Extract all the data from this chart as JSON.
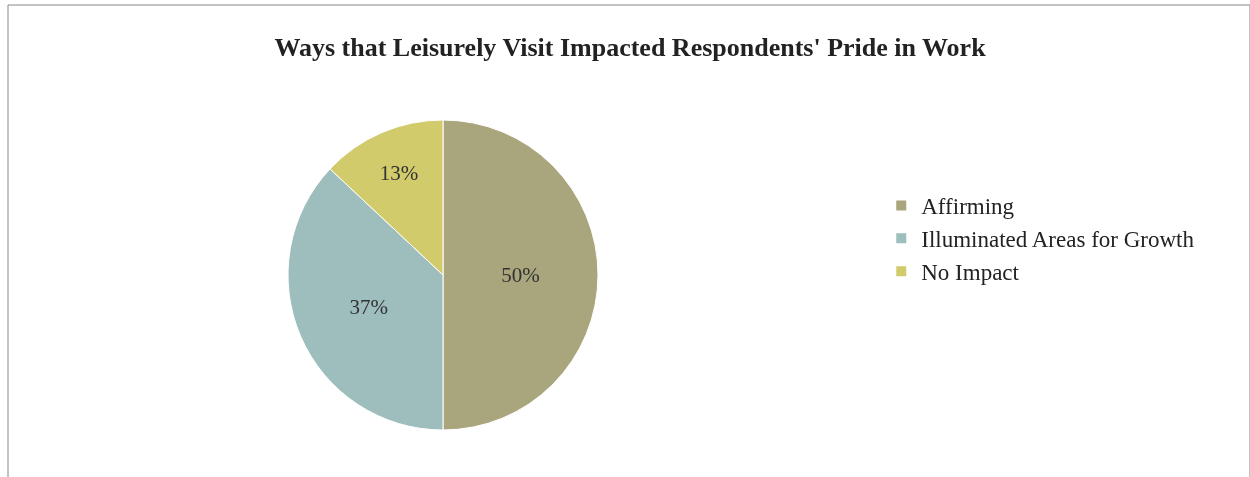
{
  "chart_data": {
    "type": "pie",
    "title": "Ways that Leisurely Visit Impacted Respondents' Pride in Work",
    "categories": [
      "Affirming",
      "Illuminated Areas for Growth",
      "No Impact"
    ],
    "values": [
      50,
      37,
      13
    ],
    "value_labels": [
      "50%",
      "37%",
      "13%"
    ],
    "colors": [
      "#a9a57c",
      "#9ebdbd",
      "#d2cb6c"
    ],
    "legend": "right"
  }
}
